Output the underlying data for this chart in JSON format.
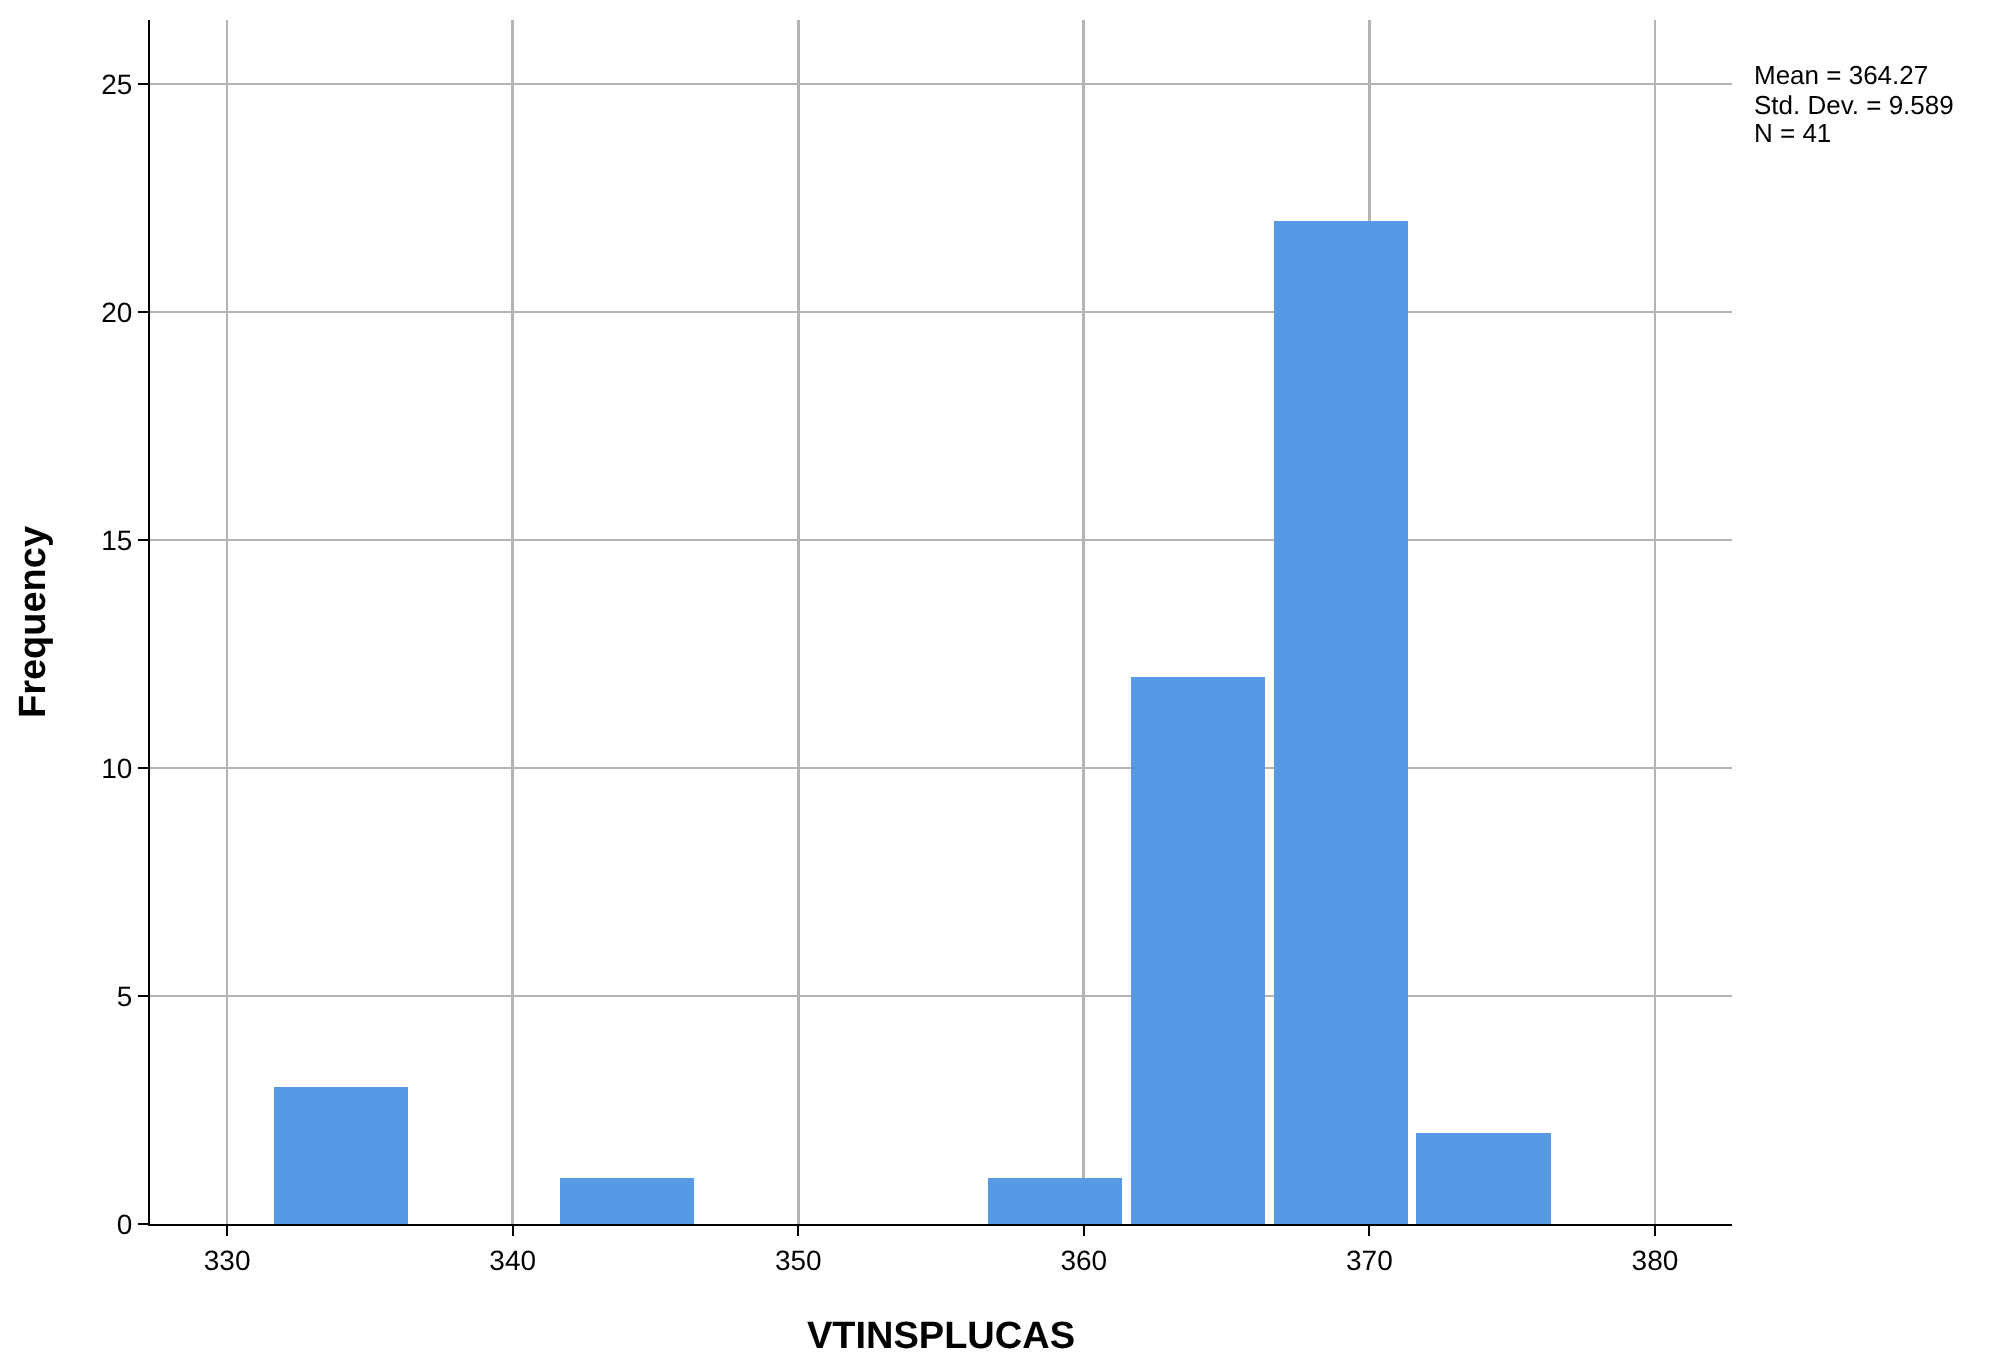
{
  "chart_data": {
    "type": "histogram",
    "xlabel": "VTINSPLUCAS",
    "ylabel": "Frequency",
    "bins": [
      331.5,
      336.5,
      341.5,
      346.5,
      351.5,
      356.5,
      361.5,
      366.5,
      371.5,
      376.5
    ],
    "values": [
      3,
      0,
      1,
      0,
      0,
      1,
      12,
      22,
      2
    ],
    "color": "#5799e5",
    "xlim": [
      327.3,
      382.7
    ],
    "xticks": [
      330,
      340,
      350,
      360,
      370,
      380
    ],
    "ylim": [
      0,
      26.4
    ],
    "yticks": [
      0,
      5,
      10,
      15,
      20,
      25
    ],
    "grid": true,
    "annotations": [
      "Mean = 364.27",
      "Std. Dev. = 9.589",
      "N = 41"
    ]
  }
}
